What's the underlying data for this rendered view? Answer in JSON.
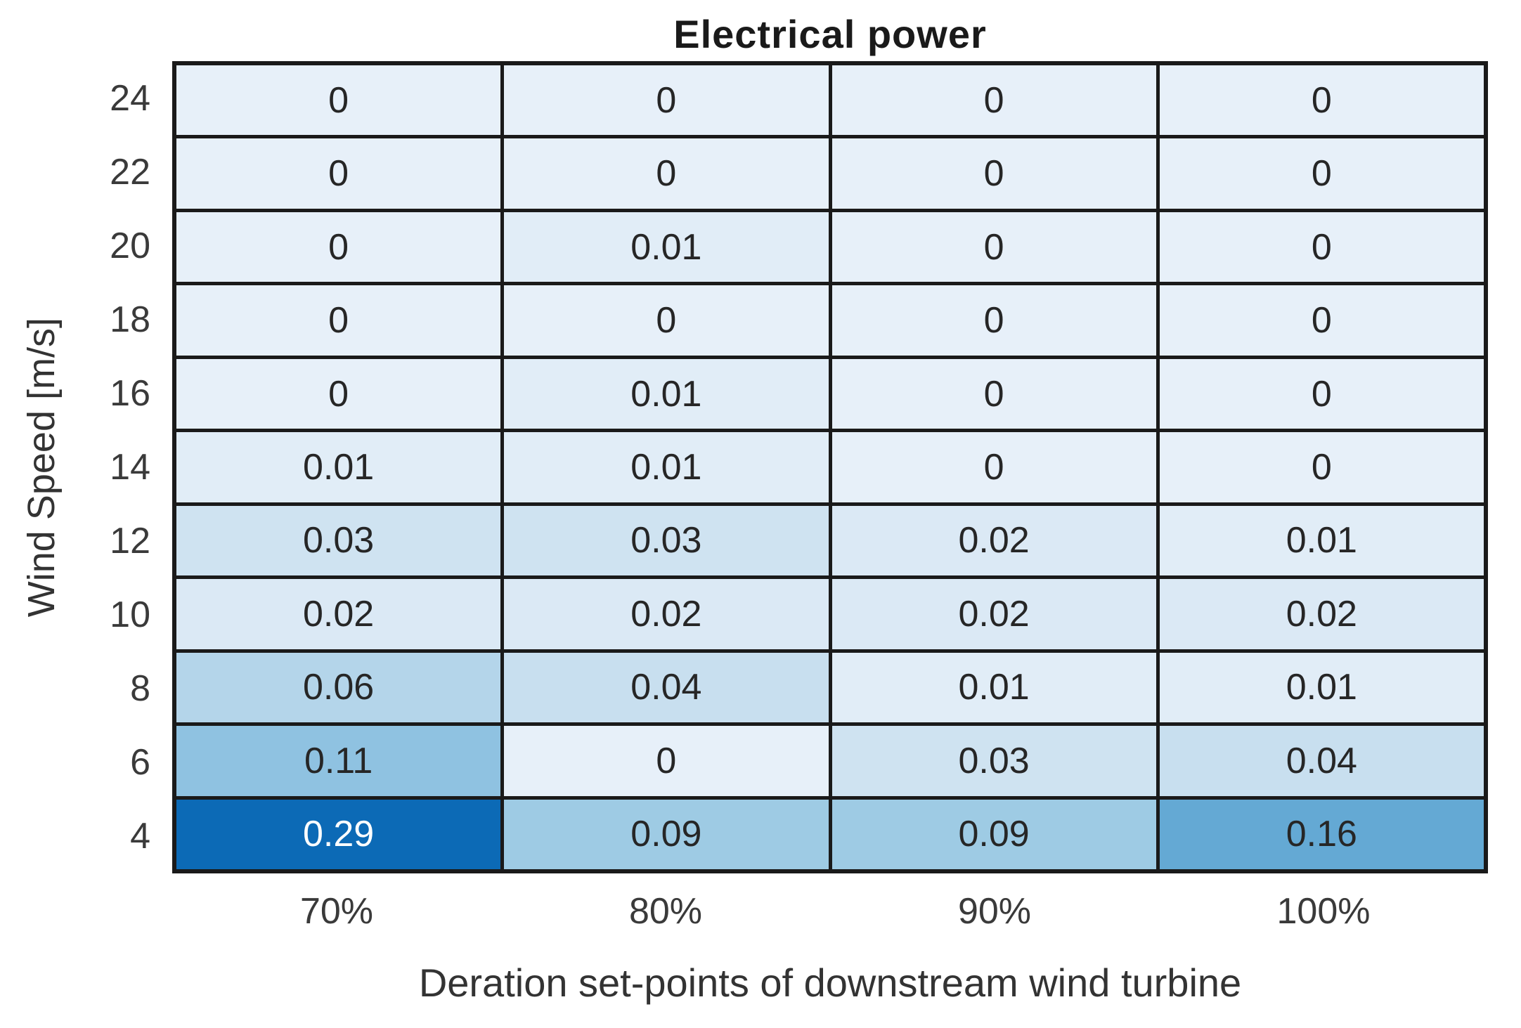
{
  "figure": {
    "title": "Electrical power",
    "xlabel": "Deration set-points of downstream wind turbine",
    "ylabel": "Wind Speed [m/s]"
  },
  "chart_data": {
    "type": "heatmap",
    "title": "Electrical power",
    "xlabel": "Deration set-points of downstream wind turbine",
    "ylabel": "Wind Speed [m/s]",
    "x_categories": [
      "70%",
      "80%",
      "90%",
      "100%"
    ],
    "y_categories": [
      "24",
      "22",
      "20",
      "18",
      "16",
      "14",
      "12",
      "10",
      "8",
      "6",
      "4"
    ],
    "values": [
      [
        0,
        0,
        0,
        0
      ],
      [
        0,
        0,
        0,
        0
      ],
      [
        0,
        0.01,
        0,
        0
      ],
      [
        0,
        0,
        0,
        0
      ],
      [
        0,
        0.01,
        0,
        0
      ],
      [
        0.01,
        0.01,
        0,
        0
      ],
      [
        0.03,
        0.03,
        0.02,
        0.01
      ],
      [
        0.02,
        0.02,
        0.02,
        0.02
      ],
      [
        0.06,
        0.04,
        0.01,
        0.01
      ],
      [
        0.11,
        0,
        0.03,
        0.04
      ],
      [
        0.29,
        0.09,
        0.09,
        0.16
      ]
    ],
    "cell_labels": [
      [
        "0",
        "0",
        "0",
        "0"
      ],
      [
        "0",
        "0",
        "0",
        "0"
      ],
      [
        "0",
        "0.01",
        "0",
        "0"
      ],
      [
        "0",
        "0",
        "0",
        "0"
      ],
      [
        "0",
        "0.01",
        "0",
        "0"
      ],
      [
        "0.01",
        "0.01",
        "0",
        "0"
      ],
      [
        "0.03",
        "0.03",
        "0.02",
        "0.01"
      ],
      [
        "0.02",
        "0.02",
        "0.02",
        "0.02"
      ],
      [
        "0.06",
        "0.04",
        "0.01",
        "0.01"
      ],
      [
        "0.11",
        "0",
        "0.03",
        "0.04"
      ],
      [
        "0.29",
        "0.09",
        "0.09",
        "0.16"
      ]
    ],
    "colormap": "blues",
    "color_scale": {
      "min": 0,
      "max": 0.29
    },
    "value_colors": {
      "0": "#e7f0f9",
      "0.01": "#e1edf7",
      "0.02": "#dbe9f5",
      "0.03": "#cfe3f1",
      "0.04": "#c8dfef",
      "0.06": "#b4d5ea",
      "0.09": "#9ecbe4",
      "0.11": "#8fc2e1",
      "0.16": "#64a9d4",
      "0.29": "#0c6ab6"
    },
    "grid_line_color": "#1a1a1a",
    "dark_text_color": "#262626",
    "light_text_color": "#ffffff",
    "legend": "none",
    "grid": true
  }
}
